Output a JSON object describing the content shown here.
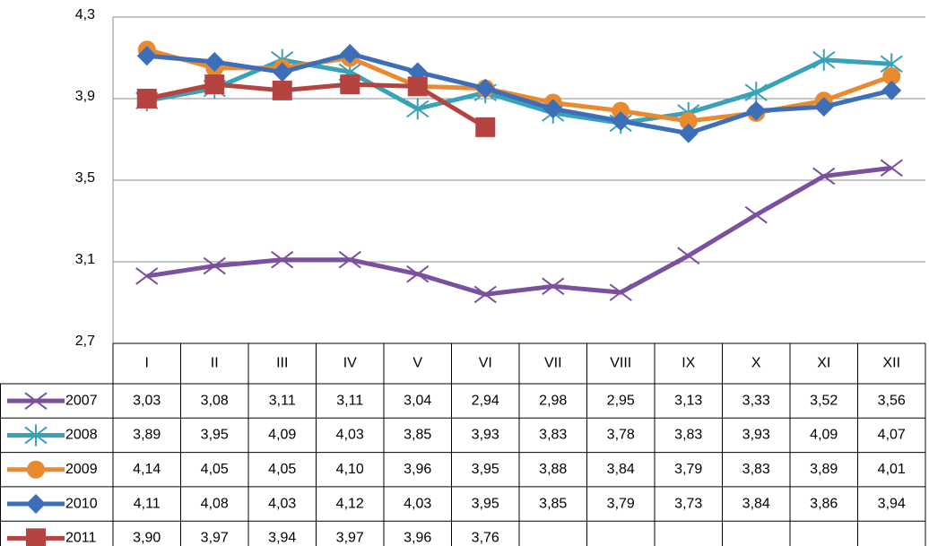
{
  "chart_data": {
    "type": "line",
    "categories": [
      "I",
      "II",
      "III",
      "IV",
      "V",
      "VI",
      "VII",
      "VIII",
      "IX",
      "X",
      "XI",
      "XII"
    ],
    "ylim": [
      2.7,
      4.3
    ],
    "yticks": [
      {
        "value": 2.7,
        "label": "2,7"
      },
      {
        "value": 3.1,
        "label": "3,1"
      },
      {
        "value": 3.5,
        "label": "3,5"
      },
      {
        "value": 3.9,
        "label": "3,9"
      },
      {
        "value": 4.3,
        "label": "4,3"
      }
    ],
    "grid": true,
    "series": [
      {
        "name": "2007",
        "color": "#7b509f",
        "marker": "x",
        "values": [
          3.03,
          3.08,
          3.11,
          3.11,
          3.04,
          2.94,
          2.98,
          2.95,
          3.13,
          3.33,
          3.52,
          3.56
        ],
        "value_labels": [
          "3,03",
          "3,08",
          "3,11",
          "3,11",
          "3,04",
          "2,94",
          "2,98",
          "2,95",
          "3,13",
          "3,33",
          "3,52",
          "3,56"
        ]
      },
      {
        "name": "2008",
        "color": "#3aa2b8",
        "marker": "star",
        "values": [
          3.89,
          3.95,
          4.09,
          4.03,
          3.85,
          3.93,
          3.83,
          3.78,
          3.83,
          3.93,
          4.09,
          4.07
        ],
        "value_labels": [
          "3,89",
          "3,95",
          "4,09",
          "4,03",
          "3,85",
          "3,93",
          "3,83",
          "3,78",
          "3,83",
          "3,93",
          "4,09",
          "4,07"
        ]
      },
      {
        "name": "2009",
        "color": "#ea8a30",
        "marker": "circle",
        "values": [
          4.14,
          4.05,
          4.05,
          4.1,
          3.96,
          3.95,
          3.88,
          3.84,
          3.79,
          3.83,
          3.89,
          4.01
        ],
        "value_labels": [
          "4,14",
          "4,05",
          "4,05",
          "4,10",
          "3,96",
          "3,95",
          "3,88",
          "3,84",
          "3,79",
          "3,83",
          "3,89",
          "4,01"
        ]
      },
      {
        "name": "2010",
        "color": "#3d6fb8",
        "marker": "diamond",
        "values": [
          4.11,
          4.08,
          4.03,
          4.12,
          4.03,
          3.95,
          3.85,
          3.79,
          3.73,
          3.84,
          3.86,
          3.94
        ],
        "value_labels": [
          "4,11",
          "4,08",
          "4,03",
          "4,12",
          "4,03",
          "3,95",
          "3,85",
          "3,79",
          "3,73",
          "3,84",
          "3,86",
          "3,94"
        ]
      },
      {
        "name": "2011",
        "color": "#b5433f",
        "marker": "square",
        "values": [
          3.9,
          3.97,
          3.94,
          3.97,
          3.96,
          3.76,
          null,
          null,
          null,
          null,
          null,
          null
        ],
        "value_labels": [
          "3,90",
          "3,97",
          "3,94",
          "3,97",
          "3,96",
          "3,76",
          null,
          null,
          null,
          null,
          null,
          null
        ]
      }
    ]
  }
}
